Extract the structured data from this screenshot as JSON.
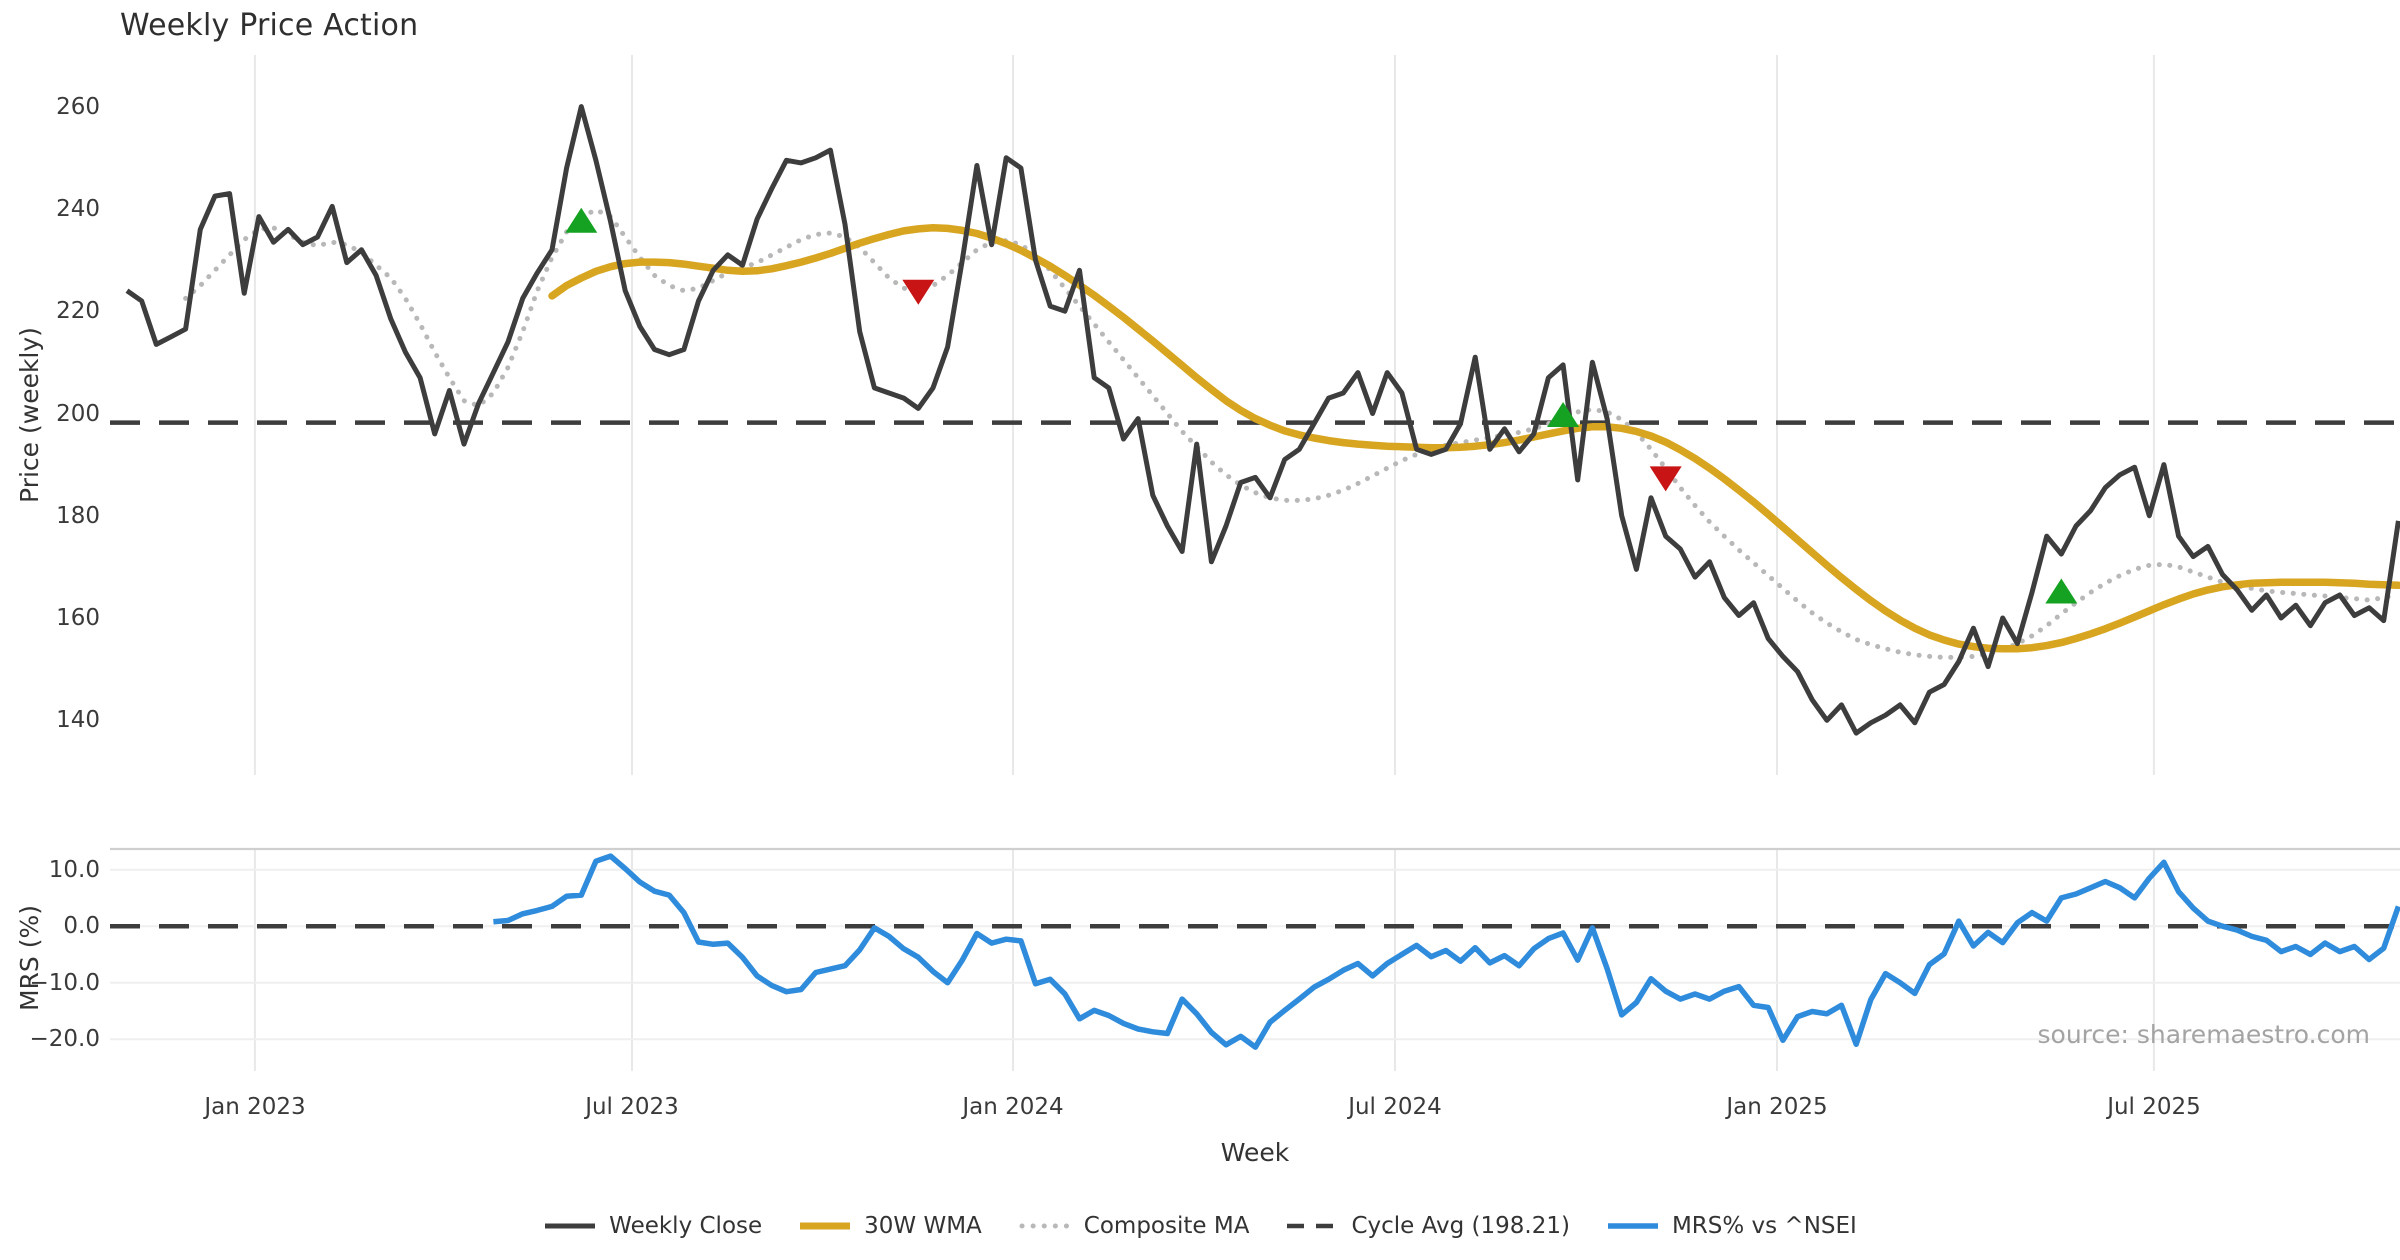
{
  "title": "Weekly Price Action",
  "source_note": "source: sharemaestro.com",
  "x_axis": {
    "label": "Week",
    "ticks": [
      {
        "week": 8.73,
        "label": "Jan 2023"
      },
      {
        "week": 34.46,
        "label": "Jul 2023"
      },
      {
        "week": 60.46,
        "label": "Jan 2024"
      },
      {
        "week": 86.53,
        "label": "Jul 2024"
      },
      {
        "week": 112.6,
        "label": "Jan 2025"
      },
      {
        "week": 138.32,
        "label": "Jul 2025"
      }
    ]
  },
  "price_axis": {
    "label": "Price (weekly)",
    "tick_labels": [
      "260",
      "240",
      "220",
      "200",
      "180",
      "160",
      "140"
    ],
    "tick_values": [
      260,
      240,
      220,
      200,
      180,
      160,
      140
    ]
  },
  "mrs_axis": {
    "label": "MRS (%)",
    "tick_labels": [
      "10.0",
      "0.0",
      "−10.0",
      "−20.0"
    ],
    "tick_values": [
      10,
      0,
      -10,
      -20
    ]
  },
  "legend": {
    "items": [
      {
        "label": "Weekly Close",
        "style": "solid",
        "color_key": "weekly_close"
      },
      {
        "label": "30W WMA",
        "style": "solid",
        "color_key": "wma"
      },
      {
        "label": "Composite MA",
        "style": "dotted",
        "color_key": "composite"
      },
      {
        "label": "Cycle Avg (198.21)",
        "style": "dashed",
        "color_key": "cycle"
      },
      {
        "label": "MRS% vs ^NSEI",
        "style": "solid",
        "color_key": "mrs"
      }
    ]
  },
  "colors": {
    "weekly_close": "#3d3d3d",
    "wma": "#d8a520",
    "composite": "#b8b8b8",
    "cycle": "#3d3d3d",
    "mrs": "#2f8bdb",
    "buy_marker": "#15a222",
    "sell_marker": "#c81414",
    "grid_vertical": "#e8e8e8",
    "grid_horizontal": "#efefef",
    "panel_spine": "#cfcfcf"
  },
  "chart_data": [
    {
      "panel": "price",
      "type": "line",
      "title": "Weekly Price Action",
      "ylabel": "Price (weekly)",
      "ylim": [
        129.3,
        270.1
      ],
      "grid": "vertical-only",
      "cycle_avg": 198.21,
      "series": [
        {
          "name": "Weekly Close",
          "style": "solid",
          "color_key": "weekly_close",
          "width": 5,
          "start_week": 0,
          "values": [
            224,
            222,
            213.5,
            215,
            216.5,
            236,
            242.5,
            243,
            223.5,
            238.5,
            233.5,
            236,
            233,
            234.5,
            240.5,
            229.5,
            232,
            227,
            218.5,
            212,
            207,
            196,
            204.5,
            194,
            202,
            208,
            214,
            222.5,
            227.5,
            232,
            248,
            260,
            249.5,
            237.5,
            224,
            217,
            212.5,
            211.5,
            212.5,
            222,
            228,
            231,
            229,
            238,
            244,
            249.5,
            249,
            250,
            251.5,
            237,
            216,
            205,
            204,
            203,
            201,
            205,
            213,
            230,
            248.5,
            233,
            250,
            248,
            230,
            221,
            220,
            228,
            207,
            205,
            195,
            199,
            184,
            178,
            173,
            194,
            171,
            178,
            186.5,
            187.5,
            183.5,
            191,
            193,
            198,
            203,
            204,
            208,
            200,
            208,
            204,
            193,
            192,
            193,
            198,
            211,
            193,
            197,
            192.5,
            196,
            207,
            209.5,
            187,
            210,
            199,
            180,
            169.5,
            183.5,
            176,
            173.5,
            168,
            171,
            164,
            160.5,
            163,
            156,
            152.5,
            149.5,
            144,
            140,
            143,
            137.5,
            139.5,
            141,
            143,
            139.5,
            145.5,
            147,
            151.5,
            158,
            150.5,
            160,
            155,
            165,
            176,
            172.5,
            178,
            181,
            185.5,
            188,
            189.5,
            180,
            190,
            176,
            172,
            174,
            168.5,
            165.5,
            161.5,
            164.5,
            160,
            162.5,
            158.5,
            163,
            164.5,
            160.5,
            162,
            159.5,
            179
          ]
        },
        {
          "name": "30W WMA",
          "style": "solid",
          "color_key": "wma",
          "width": 7.5,
          "start_week": 29,
          "values": [
            223,
            225,
            226.5,
            227.8,
            228.7,
            229.3,
            229.6,
            229.6,
            229.5,
            229.2,
            228.8,
            228.4,
            228,
            227.8,
            227.9,
            228.3,
            228.9,
            229.6,
            230.4,
            231.3,
            232.3,
            233.3,
            234.2,
            235,
            235.7,
            236.1,
            236.3,
            236.2,
            235.8,
            235.2,
            234.3,
            233.2,
            231.9,
            230.4,
            228.8,
            227,
            225.1,
            223.1,
            221,
            218.8,
            216.5,
            214.2,
            211.8,
            209.4,
            207,
            204.7,
            202.5,
            200.6,
            199,
            197.7,
            196.6,
            195.8,
            195.2,
            194.7,
            194.3,
            194,
            193.8,
            193.6,
            193.5,
            193.4,
            193.3,
            193.3,
            193.4,
            193.6,
            193.9,
            194.3,
            194.8,
            195.4,
            196,
            196.6,
            197.1,
            197.4,
            197.4,
            197.1,
            196.5,
            195.6,
            194.4,
            192.9,
            191.2,
            189.3,
            187.2,
            185,
            182.7,
            180.3,
            177.8,
            175.3,
            172.8,
            170.3,
            167.9,
            165.6,
            163.4,
            161.4,
            159.6,
            158,
            156.7,
            155.7,
            154.9,
            154.4,
            154.1,
            154,
            154,
            154.2,
            154.6,
            155.2,
            156,
            156.9,
            157.9,
            159,
            160.2,
            161.4,
            162.6,
            163.7,
            164.7,
            165.5,
            166.1,
            166.5,
            166.8,
            166.9,
            167,
            167,
            167,
            167,
            166.9,
            166.8,
            166.6,
            166.5,
            166.4
          ]
        },
        {
          "name": "Composite MA",
          "style": "dotted",
          "color_key": "composite",
          "width": 5,
          "start_week": 4,
          "values": [
            222.5,
            225,
            228,
            231,
            234,
            236,
            236.3,
            235,
            233.5,
            232.8,
            233.5,
            233,
            231.5,
            229,
            226.5,
            222.5,
            217.5,
            212,
            207,
            202.5,
            201.5,
            204,
            209,
            216,
            224,
            230.5,
            235.5,
            238.5,
            239.8,
            238.5,
            234.5,
            230.5,
            227,
            225,
            224,
            224.5,
            226,
            227.5,
            228.5,
            229.5,
            231,
            232.5,
            234,
            235,
            235.3,
            234.5,
            232.5,
            229.5,
            226.5,
            224.5,
            224,
            225,
            227,
            229.5,
            232,
            233.5,
            233.8,
            233,
            231,
            228,
            224.5,
            221,
            217.5,
            214,
            210.5,
            207,
            203.5,
            200,
            196.5,
            193.5,
            190.5,
            188,
            186,
            184.5,
            183.5,
            183,
            183,
            183.3,
            184,
            185,
            186.3,
            187.8,
            189.3,
            190.8,
            192,
            193,
            193.8,
            194.3,
            194.8,
            195.3,
            195.8,
            196.3,
            197,
            198,
            199.3,
            200.3,
            200.8,
            200.3,
            198.8,
            196.3,
            193,
            189.3,
            185.5,
            182,
            178.8,
            176,
            173.3,
            170.8,
            168.3,
            165.8,
            163.3,
            161,
            159,
            157.3,
            155.8,
            154.8,
            154,
            153.3,
            152.8,
            152.5,
            152.3,
            152.3,
            152.5,
            153,
            153.8,
            155,
            156.5,
            158.5,
            160.8,
            163,
            165,
            166.8,
            168.3,
            169.5,
            170.3,
            170.5,
            170,
            169,
            168,
            167,
            166.3,
            165.8,
            165.3,
            165,
            164.8,
            164.5,
            164.3,
            164,
            163.8,
            163.5,
            164,
            164.5
          ]
        },
        {
          "name": "Cycle Avg (198.21)",
          "style": "dashed",
          "color_key": "cycle",
          "width": 4.5,
          "value": 198.21
        }
      ],
      "signals": {
        "buy": [
          {
            "week": 31,
            "value": 237.5
          },
          {
            "week": 98,
            "value": 199.5
          },
          {
            "week": 132,
            "value": 165
          }
        ],
        "sell": [
          {
            "week": 54,
            "value": 224
          },
          {
            "week": 105,
            "value": 187.5
          }
        ]
      }
    },
    {
      "panel": "mrs",
      "type": "line",
      "ylabel": "MRS (%)",
      "xlabel": "Week",
      "ylim": [
        -25.63,
        13.66
      ],
      "grid": "both",
      "zero_line": 0,
      "series": [
        {
          "name": "MRS% vs ^NSEI",
          "style": "solid",
          "color_key": "mrs",
          "width": 5.5,
          "start_week": 25,
          "values": [
            0.8,
            1.0,
            2.2,
            2.8,
            3.5,
            5.3,
            5.5,
            11.5,
            12.4,
            10.2,
            7.8,
            6.2,
            5.5,
            2.4,
            -2.8,
            -3.2,
            -3.0,
            -5.5,
            -8.8,
            -10.5,
            -11.6,
            -11.2,
            -8.2,
            -7.6,
            -7.0,
            -4.2,
            -0.3,
            -1.8,
            -4.0,
            -5.5,
            -8.0,
            -10.0,
            -6.0,
            -1.3,
            -3.0,
            -2.3,
            -2.6,
            -10.2,
            -9.4,
            -12.0,
            -16.4,
            -14.9,
            -15.8,
            -17.2,
            -18.2,
            -18.7,
            -19.0,
            -12.9,
            -15.5,
            -18.8,
            -21.0,
            -19.5,
            -21.4,
            -17.0,
            -14.9,
            -12.9,
            -10.8,
            -9.4,
            -7.8,
            -6.6,
            -8.8,
            -6.6,
            -5.0,
            -3.4,
            -5.4,
            -4.3,
            -6.2,
            -3.8,
            -6.5,
            -5.2,
            -7.0,
            -4.0,
            -2.2,
            -1.2,
            -6.0,
            -0.3,
            -7.5,
            -15.7,
            -13.5,
            -9.3,
            -11.5,
            -12.9,
            -12.0,
            -12.9,
            -11.5,
            -10.7,
            -14.0,
            -14.4,
            -20.2,
            -16.0,
            -15.1,
            -15.5,
            -14.0,
            -20.9,
            -13.0,
            -8.4,
            -10.0,
            -11.9,
            -6.8,
            -4.9,
            0.9,
            -3.5,
            -1.1,
            -2.9,
            0.6,
            2.4,
            0.9,
            5.0,
            5.7,
            6.8,
            7.9,
            6.8,
            5.0,
            8.5,
            11.3,
            6.1,
            3.2,
            0.9,
            0.0,
            -0.7,
            -1.8,
            -2.5,
            -4.5,
            -3.6,
            -5.0,
            -3.0,
            -4.5,
            -3.6,
            -5.9,
            -3.9,
            3.5
          ]
        }
      ]
    }
  ]
}
